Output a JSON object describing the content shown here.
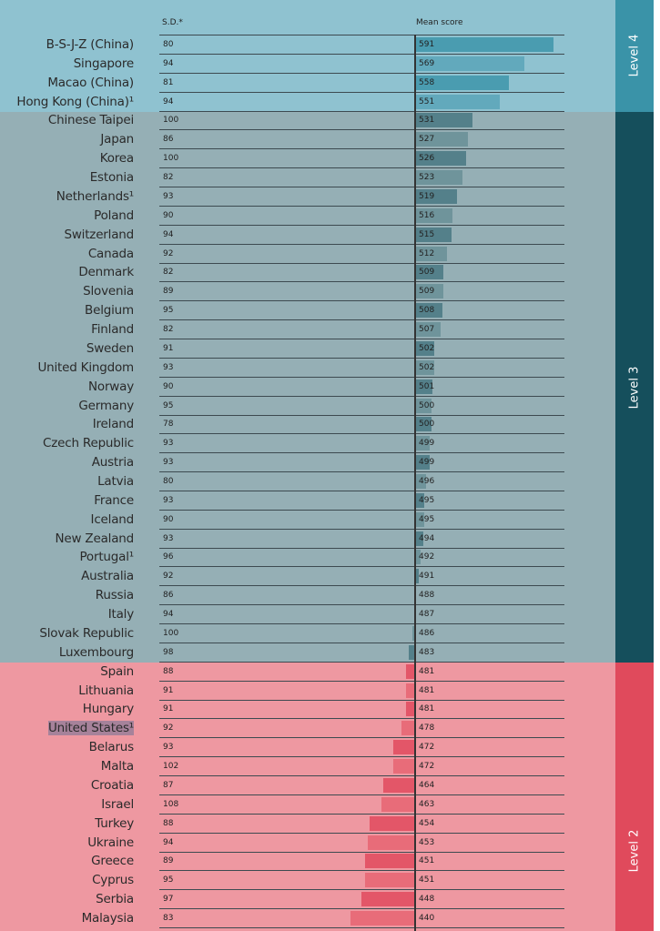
{
  "chart_data": {
    "type": "bar",
    "title": "",
    "xlabel": "Mean score",
    "ylabel": "",
    "columns": [
      "S.D.*",
      "Mean score"
    ],
    "baseline": 488,
    "categories": [
      "B-S-J-Z (China)",
      "Singapore",
      "Macao (China)",
      "Hong Kong (China)¹",
      "Chinese Taipei",
      "Japan",
      "Korea",
      "Estonia",
      "Netherlands¹",
      "Poland",
      "Switzerland",
      "Canada",
      "Denmark",
      "Slovenia",
      "Belgium",
      "Finland",
      "Sweden",
      "United Kingdom",
      "Norway",
      "Germany",
      "Ireland",
      "Czech Republic",
      "Austria",
      "Latvia",
      "France",
      "Iceland",
      "New Zealand",
      "Portugal¹",
      "Australia",
      "Russia",
      "Italy",
      "Slovak Republic",
      "Luxembourg",
      "Spain",
      "Lithuania",
      "Hungary",
      "United States¹",
      "Belarus",
      "Malta",
      "Croatia",
      "Israel",
      "Turkey",
      "Ukraine",
      "Greece",
      "Cyprus",
      "Serbia",
      "Malaysia"
    ],
    "series": [
      {
        "name": "Mean score",
        "values": [
          591,
          569,
          558,
          551,
          531,
          527,
          526,
          523,
          519,
          516,
          515,
          512,
          509,
          509,
          508,
          507,
          502,
          502,
          501,
          500,
          500,
          499,
          499,
          496,
          495,
          495,
          494,
          492,
          491,
          488,
          487,
          486,
          483,
          481,
          481,
          481,
          478,
          472,
          472,
          464,
          463,
          454,
          453,
          451,
          451,
          448,
          440
        ]
      },
      {
        "name": "S.D.*",
        "values": [
          80,
          94,
          81,
          94,
          100,
          86,
          100,
          82,
          93,
          90,
          94,
          92,
          82,
          89,
          95,
          82,
          91,
          93,
          90,
          95,
          78,
          93,
          93,
          80,
          93,
          90,
          93,
          96,
          92,
          86,
          94,
          100,
          98,
          88,
          91,
          91,
          92,
          93,
          102,
          87,
          108,
          88,
          94,
          89,
          95,
          97,
          83
        ]
      }
    ],
    "levels": [
      {
        "name": "Level 4",
        "first": 0,
        "last": 3,
        "band_color": "#3a93a8",
        "bg_color": "#8fc2d0",
        "bar_colors": [
          "#4a9cb0",
          "#62a9bc"
        ]
      },
      {
        "name": "Level 3",
        "first": 4,
        "last": 32,
        "band_color": "#154f5c",
        "bg_color": "#95afb5",
        "bar_colors": [
          "#54808a",
          "#6f949b"
        ]
      },
      {
        "name": "Level 2",
        "first": 33,
        "last": 46,
        "band_color": "#e04a5c",
        "bg_color": "#ee98a1",
        "bar_colors": [
          "#e86c79",
          "#e35668"
        ]
      }
    ],
    "highlighted": "United States¹"
  }
}
